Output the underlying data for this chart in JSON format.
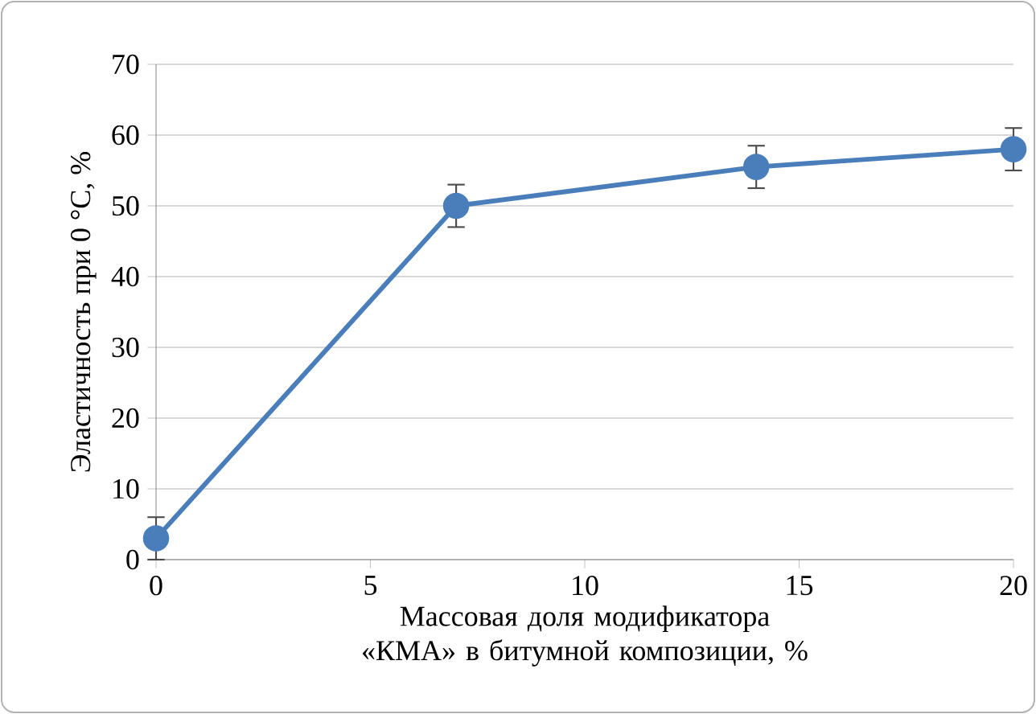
{
  "chart_data": {
    "type": "line",
    "xlabel": "Массовая доля модификатора «КМА» в битумной композиции, %",
    "ylabel": "Эластичность при 0 °С, %",
    "x": [
      0,
      7,
      14,
      20
    ],
    "series": [
      {
        "color": "#4a7ebb",
        "values": [
          3,
          50,
          55.5,
          58
        ],
        "errors": [
          3,
          3,
          3,
          3
        ]
      }
    ],
    "xlim": [
      0,
      20
    ],
    "xticks": [
      0,
      5,
      10,
      15,
      20
    ],
    "ylim": [
      0,
      70
    ],
    "yticks": [
      0,
      10,
      20,
      30,
      40,
      50,
      60,
      70
    ],
    "grid": "y",
    "marker": "circle",
    "line_style": "solid"
  }
}
